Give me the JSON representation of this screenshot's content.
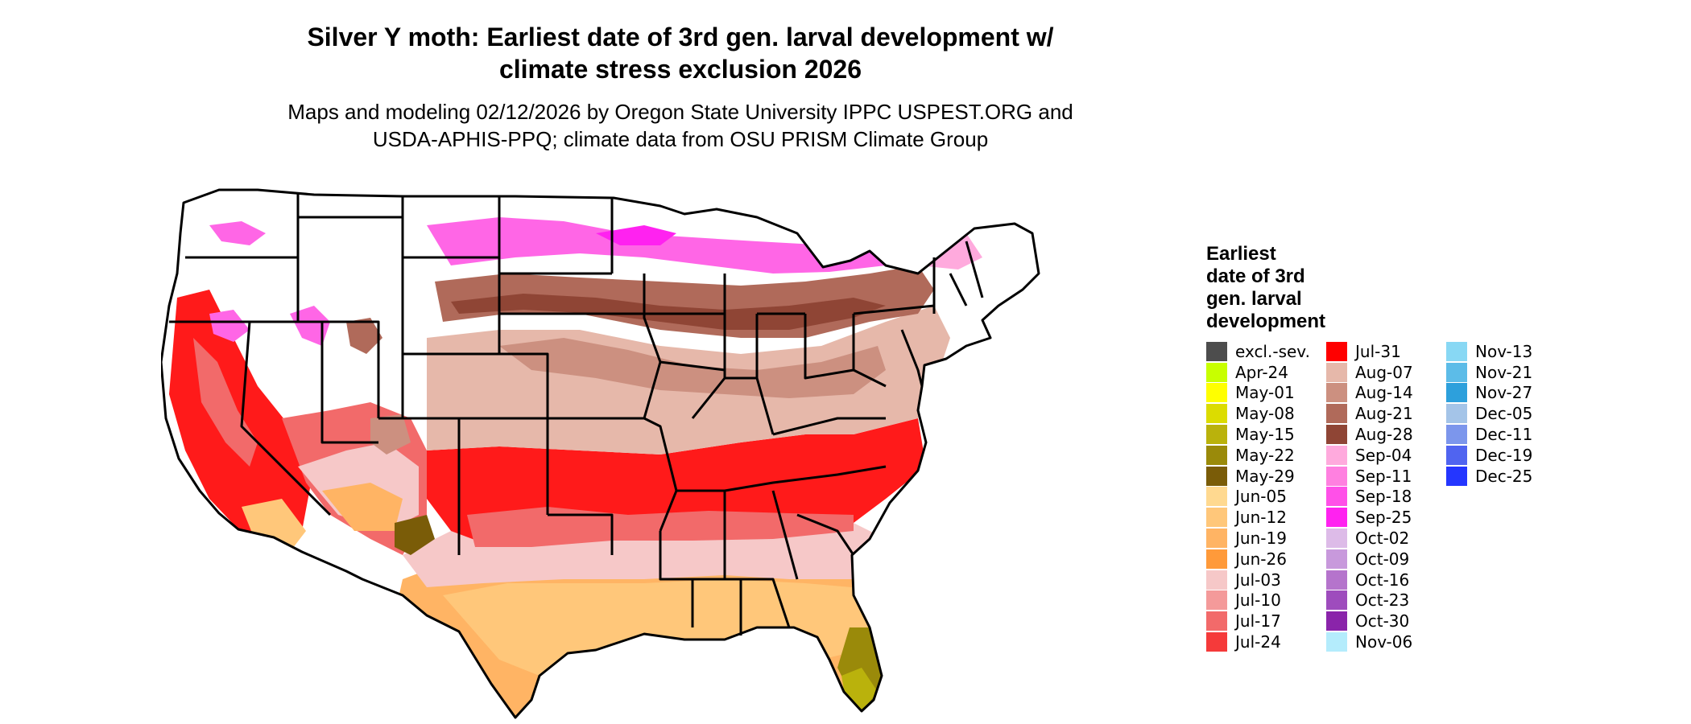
{
  "title_line1": "Silver Y moth: Earliest date of 3rd gen. larval development w/",
  "title_line2": "climate stress exclusion 2026",
  "subtitle_line1": "Maps and modeling 02/12/2026 by Oregon State University IPPC USPEST.ORG and",
  "subtitle_line2": "USDA-APHIS-PPQ; climate data from OSU PRISM Climate Group",
  "legend": {
    "title_lines": [
      "Earliest",
      "date of 3rd",
      "gen. larval",
      "development"
    ],
    "columns": [
      [
        {
          "label": "excl.-sev.",
          "color": "#4d4d4d"
        },
        {
          "label": "Apr-24",
          "color": "#c8ff00"
        },
        {
          "label": "May-01",
          "color": "#ffff00"
        },
        {
          "label": "May-08",
          "color": "#dcdc00"
        },
        {
          "label": "May-15",
          "color": "#bab20c"
        },
        {
          "label": "May-22",
          "color": "#9a8a0a"
        },
        {
          "label": "May-29",
          "color": "#7a5c08"
        },
        {
          "label": "Jun-05",
          "color": "#ffd990"
        },
        {
          "label": "Jun-12",
          "color": "#ffc77a"
        },
        {
          "label": "Jun-19",
          "color": "#ffb464"
        },
        {
          "label": "Jun-26",
          "color": "#ff9a3a"
        },
        {
          "label": "Jul-03",
          "color": "#f6c8c8"
        },
        {
          "label": "Jul-10",
          "color": "#f49a9a"
        },
        {
          "label": "Jul-17",
          "color": "#f26a6a"
        },
        {
          "label": "Jul-24",
          "color": "#f53a3a"
        }
      ],
      [
        {
          "label": "Jul-31",
          "color": "#ff0000"
        },
        {
          "label": "Aug-07",
          "color": "#e6b8aa"
        },
        {
          "label": "Aug-14",
          "color": "#cc9080"
        },
        {
          "label": "Aug-21",
          "color": "#b06a5a"
        },
        {
          "label": "Aug-28",
          "color": "#8f4535"
        },
        {
          "label": "Sep-04",
          "color": "#ffaadd"
        },
        {
          "label": "Sep-11",
          "color": "#ff80e0"
        },
        {
          "label": "Sep-18",
          "color": "#ff50e8"
        },
        {
          "label": "Sep-25",
          "color": "#ff22f0"
        },
        {
          "label": "Oct-02",
          "color": "#ddbbe8"
        },
        {
          "label": "Oct-09",
          "color": "#c899dc"
        },
        {
          "label": "Oct-16",
          "color": "#b574cc"
        },
        {
          "label": "Oct-23",
          "color": "#9e4cbd"
        },
        {
          "label": "Oct-30",
          "color": "#8a24aa"
        },
        {
          "label": "Nov-06",
          "color": "#b4ecfc"
        }
      ],
      [
        {
          "label": "Nov-13",
          "color": "#88d8f4"
        },
        {
          "label": "Nov-21",
          "color": "#5cbce8"
        },
        {
          "label": "Nov-27",
          "color": "#2da0dc"
        },
        {
          "label": "Dec-05",
          "color": "#a4c4e8"
        },
        {
          "label": "Dec-11",
          "color": "#7c96ec"
        },
        {
          "label": "Dec-19",
          "color": "#5064f0"
        },
        {
          "label": "Dec-25",
          "color": "#2436ff"
        }
      ]
    ]
  }
}
